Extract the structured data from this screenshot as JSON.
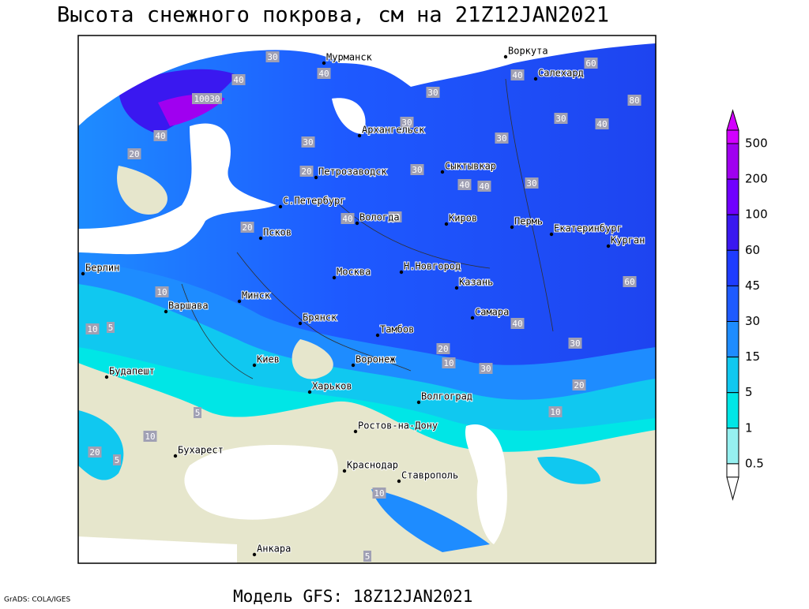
{
  "header": {
    "title": "Высота снежного покрова, см на 21Z12JAN2021"
  },
  "cities": [
    "Мурманск",
    "Воркута",
    "Салехард",
    "Архангельск",
    "Сыктывкар",
    "Петрозаводск",
    "С.Петербург",
    "Вологда",
    "Киров",
    "Пермь",
    "Екатеринбург",
    "Курган",
    "Псков",
    "Берлин",
    "Н.Новгород",
    "Москва",
    "Казань",
    "Минск",
    "Варшава",
    "Самара",
    "Брянск",
    "Тамбов",
    "Киев",
    "Воронеж",
    "Будапешт",
    "Харьков",
    "Волгоград",
    "Ростов-на-Дону",
    "Бухарест",
    "Краснодар",
    "Ставрополь",
    "Анкара"
  ],
  "contour_labels": [
    "30",
    "40",
    "10030",
    "40",
    "30",
    "30",
    "30",
    "20",
    "30",
    "40",
    "30",
    "40",
    "60",
    "80",
    "40",
    "30",
    "40",
    "30",
    "20",
    "20",
    "40",
    "40",
    "60",
    "10",
    "10",
    "5",
    "20",
    "30",
    "10",
    "20",
    "10",
    "5",
    "10",
    "20",
    "5",
    "10",
    "5",
    "40",
    "30",
    "40"
  ],
  "legend": {
    "labels": [
      "500",
      "200",
      "100",
      "60",
      "45",
      "30",
      "15",
      "5",
      "1",
      "0.5"
    ],
    "colors": [
      "#d200ff",
      "#a000f0",
      "#7000ff",
      "#3a18f0",
      "#1e3cff",
      "#1e5aff",
      "#1e8cff",
      "#10c8f0",
      "#00e6e6",
      "#96f0f0",
      "#ffffff"
    ]
  },
  "footer": {
    "credit": "GrADS: COLA/IGES",
    "model": "Модель GFS: 18Z12JAN2021"
  }
}
